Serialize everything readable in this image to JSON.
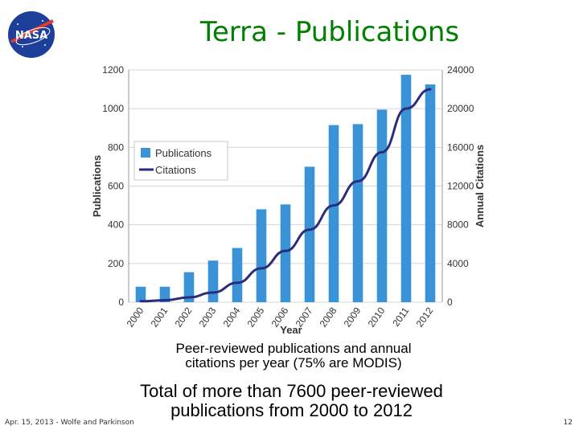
{
  "slide": {
    "title": "Terra - Publications",
    "logo_text": "NASA",
    "caption_line1": "Peer-reviewed publications and annual",
    "caption_line2": "citations per year (75% are MODIS)",
    "summary_line1": "Total of more than 7600 peer-reviewed",
    "summary_line2": "publications from 2000 to 2012",
    "footer_left": "Apr. 15, 2013 - Wolfe and Parkinson",
    "footer_right": "12"
  },
  "colors": {
    "title": "#008000",
    "bar": "#3a93d6",
    "line": "#2b2d7a",
    "logo_blue": "#1d3f9a",
    "logo_red": "#e03a2a"
  },
  "chart_data": {
    "type": "bar",
    "categories": [
      "2000",
      "2001",
      "2002",
      "2003",
      "2004",
      "2005",
      "2006",
      "2007",
      "2008",
      "2009",
      "2010",
      "2011",
      "2012"
    ],
    "series": [
      {
        "name": "Publications",
        "type": "bar",
        "axis": "left",
        "values": [
          80,
          80,
          155,
          215,
          280,
          480,
          505,
          700,
          915,
          920,
          995,
          1175,
          1125
        ]
      },
      {
        "name": "Citations",
        "type": "line",
        "axis": "right",
        "values": [
          100,
          200,
          500,
          1000,
          2000,
          3500,
          5300,
          7500,
          10000,
          12500,
          15500,
          20000,
          22000
        ]
      }
    ],
    "xlabel": "Year",
    "ylabel": "Publications",
    "y2label": "Annual Citations",
    "ylim": [
      0,
      1200
    ],
    "y2lim": [
      0,
      24000
    ],
    "yticks": [
      "0",
      "200",
      "400",
      "600",
      "800",
      "1000",
      "1200"
    ],
    "y2ticks": [
      "0",
      "4000",
      "8000",
      "12000",
      "16000",
      "20000",
      "24000"
    ],
    "grid": true,
    "legend": "upper-left"
  }
}
